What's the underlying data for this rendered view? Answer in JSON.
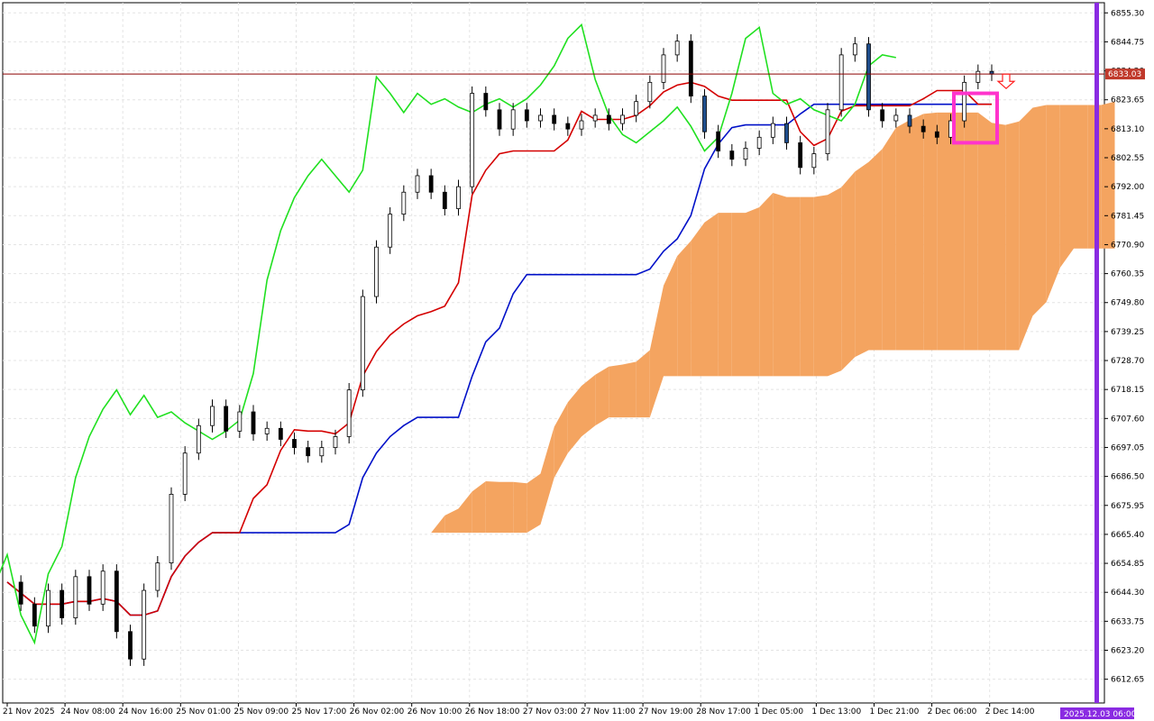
{
  "chart_data": {
    "type": "candlestick",
    "symbol_price": "6833.03",
    "price_axis_labels": [
      "6855.30",
      "6844.75",
      "6834.20",
      "6823.65",
      "6813.10",
      "6802.55",
      "6792.00",
      "6781.45",
      "6770.90",
      "6760.35",
      "6749.80",
      "6739.25",
      "6728.70",
      "6718.15",
      "6707.60",
      "6697.05",
      "6686.50",
      "6675.95",
      "6665.40",
      "6654.85",
      "6644.30",
      "6633.75",
      "6623.20",
      "6612.65"
    ],
    "time_axis_labels": [
      "21 Nov 2025",
      "24 Nov 08:00",
      "24 Nov 16:00",
      "25 Nov 01:00",
      "25 Nov 09:00",
      "25 Nov 17:00",
      "26 Nov 02:00",
      "26 Nov 10:00",
      "26 Nov 18:00",
      "27 Nov 03:00",
      "27 Nov 11:00",
      "27 Nov 19:00",
      "28 Nov 17:00",
      "1 Dec 05:00",
      "1 Dec 13:00",
      "1 Dec 21:00",
      "2 Dec 06:00",
      "2 Dec 14:00"
    ],
    "current_time_label": "2025.12.03 06:00",
    "ylim": [
      6604,
      6859
    ],
    "close_path": [
      6648,
      6640,
      6632,
      6645,
      6635,
      6650,
      6640,
      6652,
      6630,
      6620,
      6645,
      6655,
      6680,
      6695,
      6705,
      6712,
      6703,
      6710,
      6702,
      6704,
      6700,
      6697,
      6694,
      6697,
      6701,
      6718,
      6752,
      6770,
      6782,
      6790,
      6796,
      6790,
      6784,
      6792,
      6826,
      6820,
      6813,
      6820,
      6816,
      6818,
      6815,
      6813,
      6816,
      6818,
      6815,
      6818,
      6823,
      6830,
      6840,
      6845,
      6825,
      6812,
      6805,
      6802,
      6806,
      6810,
      6815,
      6808,
      6799,
      6804,
      6820,
      6840,
      6844,
      6820,
      6816,
      6818,
      6814,
      6812,
      6810,
      6816,
      6830,
      6834,
      6833
    ],
    "colors": {
      "price_line": "#8b0000",
      "price_tag": "#c0392b",
      "tenkan": "#d40000",
      "kijun": "#0010c8",
      "chikou": "#20e020",
      "kumo_bull": "#f4a460",
      "kumo_bear": "#d8c0dc",
      "current_time_bar": "#8a2be2",
      "marker_box": "#ff33cc",
      "bear_candle": "#000000",
      "blue_candle": "#1f4e8c"
    }
  }
}
